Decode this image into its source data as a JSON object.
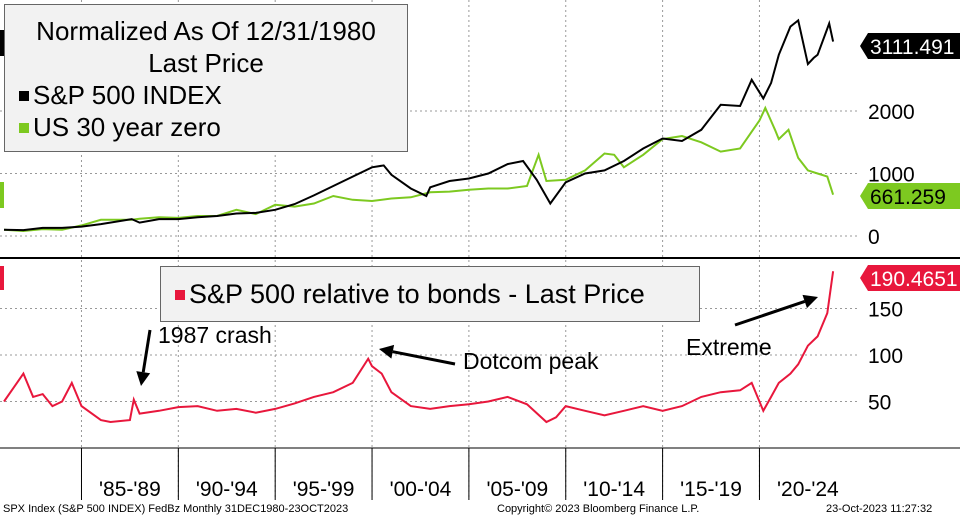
{
  "top_legend": {
    "title_line1": "Normalized As Of 12/31/1980",
    "title_line2": "Last Price",
    "items": [
      {
        "label": "S&P 500 INDEX",
        "color": "#000000"
      },
      {
        "label": "US 30 year zero",
        "color": "#7dc920"
      }
    ]
  },
  "bottom_legend": {
    "label": "S&P 500 relative to bonds - Last Price",
    "color": "#e8173c"
  },
  "annotations": {
    "crash": "1987 crash",
    "dotcom": "Dotcom peak",
    "extreme": "Extreme"
  },
  "footer": {
    "left": "SPX Index (S&P 500 INDEX) FedBz  Monthly 31DEC1980-23OCT2023",
    "center": "Copyright© 2023 Bloomberg Finance L.P.",
    "right": "23-Oct-2023 11:27:32"
  },
  "chart_data": [
    {
      "type": "line",
      "title": "Normalized As Of 12/31/1980",
      "yticks": [
        "0",
        "1000",
        "2000"
      ],
      "ylim": [
        0,
        3400
      ],
      "last_value_labels": {
        "sp500": "3111.491",
        "bonds": "661.259"
      },
      "series": [
        {
          "name": "S&P 500 INDEX",
          "color": "#000000",
          "points": [
            [
              1981,
              100
            ],
            [
              1982,
              95
            ],
            [
              1983,
              130
            ],
            [
              1984,
              130
            ],
            [
              1985,
              150
            ],
            [
              1986,
              190
            ],
            [
              1987.6,
              270
            ],
            [
              1988,
              215
            ],
            [
              1989,
              270
            ],
            [
              1990,
              270
            ],
            [
              1991,
              300
            ],
            [
              1992,
              320
            ],
            [
              1993,
              360
            ],
            [
              1994,
              370
            ],
            [
              1995,
              420
            ],
            [
              1996,
              510
            ],
            [
              1997,
              650
            ],
            [
              1998,
              800
            ],
            [
              1999,
              950
            ],
            [
              2000,
              1100
            ],
            [
              2000.6,
              1130
            ],
            [
              2001,
              980
            ],
            [
              2002,
              760
            ],
            [
              2002.8,
              640
            ],
            [
              2003,
              780
            ],
            [
              2004,
              880
            ],
            [
              2005,
              920
            ],
            [
              2006,
              1000
            ],
            [
              2007,
              1150
            ],
            [
              2007.8,
              1200
            ],
            [
              2008.5,
              900
            ],
            [
              2009.2,
              520
            ],
            [
              2010,
              860
            ],
            [
              2011,
              1000
            ],
            [
              2012,
              1050
            ],
            [
              2013,
              1200
            ],
            [
              2014,
              1400
            ],
            [
              2015,
              1560
            ],
            [
              2016,
              1520
            ],
            [
              2017,
              1700
            ],
            [
              2018,
              2100
            ],
            [
              2019,
              2080
            ],
            [
              2019.6,
              2500
            ],
            [
              2020.2,
              2200
            ],
            [
              2020.6,
              2450
            ],
            [
              2021,
              2900
            ],
            [
              2021.6,
              3350
            ],
            [
              2022,
              3450
            ],
            [
              2022.5,
              2750
            ],
            [
              2022.8,
              2850
            ],
            [
              2023,
              2900
            ],
            [
              2023.6,
              3400
            ],
            [
              2023.8,
              3111
            ]
          ]
        },
        {
          "name": "US 30 year zero",
          "color": "#7dc920",
          "points": [
            [
              1981,
              100
            ],
            [
              1982,
              80
            ],
            [
              1983,
              110
            ],
            [
              1984,
              100
            ],
            [
              1985,
              170
            ],
            [
              1986,
              260
            ],
            [
              1987.6,
              260
            ],
            [
              1988,
              275
            ],
            [
              1989,
              300
            ],
            [
              1990,
              290
            ],
            [
              1991,
              320
            ],
            [
              1992,
              320
            ],
            [
              1993,
              420
            ],
            [
              1994,
              350
            ],
            [
              1995,
              500
            ],
            [
              1996,
              470
            ],
            [
              1997,
              520
            ],
            [
              1998,
              640
            ],
            [
              1999,
              580
            ],
            [
              2000,
              560
            ],
            [
              2001,
              600
            ],
            [
              2002,
              620
            ],
            [
              2003,
              700
            ],
            [
              2004,
              710
            ],
            [
              2005,
              740
            ],
            [
              2006,
              760
            ],
            [
              2007,
              760
            ],
            [
              2008,
              800
            ],
            [
              2008.6,
              1300
            ],
            [
              2009,
              880
            ],
            [
              2010,
              900
            ],
            [
              2011,
              1050
            ],
            [
              2012,
              1320
            ],
            [
              2012.5,
              1300
            ],
            [
              2013,
              1100
            ],
            [
              2014,
              1300
            ],
            [
              2015,
              1550
            ],
            [
              2016,
              1600
            ],
            [
              2017,
              1500
            ],
            [
              2018,
              1350
            ],
            [
              2019,
              1400
            ],
            [
              2020,
              1850
            ],
            [
              2020.3,
              2050
            ],
            [
              2020.8,
              1700
            ],
            [
              2021,
              1550
            ],
            [
              2021.5,
              1700
            ],
            [
              2022,
              1250
            ],
            [
              2022.5,
              1050
            ],
            [
              2023,
              1000
            ],
            [
              2023.5,
              950
            ],
            [
              2023.8,
              661
            ]
          ]
        }
      ]
    },
    {
      "type": "line",
      "title": "S&P 500 relative to bonds - Last Price",
      "yticks": [
        "50",
        "100",
        "150"
      ],
      "ylim": [
        0,
        210
      ],
      "last_value_label": "190.4651",
      "series": [
        {
          "name": "S&P 500 relative to bonds - Last Price",
          "color": "#e8173c",
          "points": [
            [
              1981,
              50
            ],
            [
              1981.5,
              65
            ],
            [
              1982,
              80
            ],
            [
              1982.5,
              55
            ],
            [
              1983,
              58
            ],
            [
              1983.5,
              45
            ],
            [
              1984,
              50
            ],
            [
              1984.5,
              70
            ],
            [
              1985,
              45
            ],
            [
              1986,
              30
            ],
            [
              1986.5,
              28
            ],
            [
              1987.5,
              30
            ],
            [
              1987.7,
              52
            ],
            [
              1988,
              37
            ],
            [
              1989,
              40
            ],
            [
              1990,
              44
            ],
            [
              1991,
              45
            ],
            [
              1992,
              40
            ],
            [
              1993,
              42
            ],
            [
              1994,
              38
            ],
            [
              1995,
              42
            ],
            [
              1996,
              48
            ],
            [
              1997,
              55
            ],
            [
              1998,
              60
            ],
            [
              1999,
              70
            ],
            [
              1999.8,
              96
            ],
            [
              2000,
              88
            ],
            [
              2000.5,
              80
            ],
            [
              2001,
              60
            ],
            [
              2002,
              45
            ],
            [
              2003,
              42
            ],
            [
              2004,
              45
            ],
            [
              2005,
              47
            ],
            [
              2006,
              50
            ],
            [
              2007,
              55
            ],
            [
              2008,
              47
            ],
            [
              2009,
              28
            ],
            [
              2009.5,
              33
            ],
            [
              2010,
              45
            ],
            [
              2011,
              40
            ],
            [
              2012,
              35
            ],
            [
              2013,
              40
            ],
            [
              2014,
              45
            ],
            [
              2015,
              40
            ],
            [
              2016,
              45
            ],
            [
              2017,
              55
            ],
            [
              2018,
              60
            ],
            [
              2019,
              62
            ],
            [
              2019.6,
              70
            ],
            [
              2020.2,
              40
            ],
            [
              2020.6,
              55
            ],
            [
              2021,
              70
            ],
            [
              2021.6,
              80
            ],
            [
              2022,
              90
            ],
            [
              2022.5,
              110
            ],
            [
              2023,
              120
            ],
            [
              2023.5,
              145
            ],
            [
              2023.8,
              190
            ]
          ]
        }
      ]
    }
  ],
  "x_axis": {
    "labels": [
      "'85-'89",
      "'90-'94",
      "'95-'99",
      "'00-'04",
      "'05-'09",
      "'10-'14",
      "'15-'19",
      "'20-'24"
    ]
  }
}
